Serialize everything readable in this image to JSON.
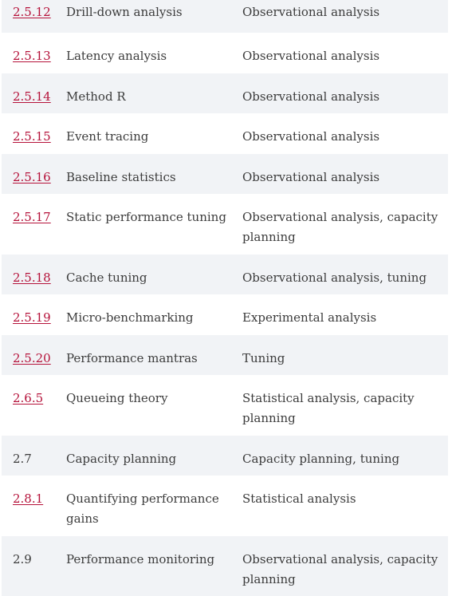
{
  "rows": [
    {
      "section": "2.5.12",
      "linked": true,
      "method": "Drill-down analysis",
      "type": "Observational analysis"
    },
    {
      "section": "2.5.13",
      "linked": true,
      "method": "Latency analysis",
      "type": "Observational analysis"
    },
    {
      "section": "2.5.14",
      "linked": true,
      "method": "Method R",
      "type": "Observational analysis"
    },
    {
      "section": "2.5.15",
      "linked": true,
      "method": "Event tracing",
      "type": "Observational analysis"
    },
    {
      "section": "2.5.16",
      "linked": true,
      "method": "Baseline statistics",
      "type": "Observational analysis"
    },
    {
      "section": "2.5.17",
      "linked": true,
      "method": "Static performance tuning",
      "type": "Observational analysis, capacity planning"
    },
    {
      "section": "2.5.18",
      "linked": true,
      "method": "Cache tuning",
      "type": "Observational analysis, tuning"
    },
    {
      "section": "2.5.19",
      "linked": true,
      "method": "Micro-benchmarking",
      "type": "Experimental analysis"
    },
    {
      "section": "2.5.20",
      "linked": true,
      "method": "Performance mantras",
      "type": "Tuning"
    },
    {
      "section": "2.6.5",
      "linked": true,
      "method": "Queueing theory",
      "type": "Statistical analysis, capacity planning"
    },
    {
      "section": "2.7",
      "linked": false,
      "method": "Capacity planning",
      "type": "Capacity planning, tuning"
    },
    {
      "section": "2.8.1",
      "linked": true,
      "method": "Quantifying performance gains",
      "type": "Statistical analysis"
    },
    {
      "section": "2.9",
      "linked": false,
      "method": "Performance monitoring",
      "type": "Observational analysis, capacity planning"
    }
  ]
}
